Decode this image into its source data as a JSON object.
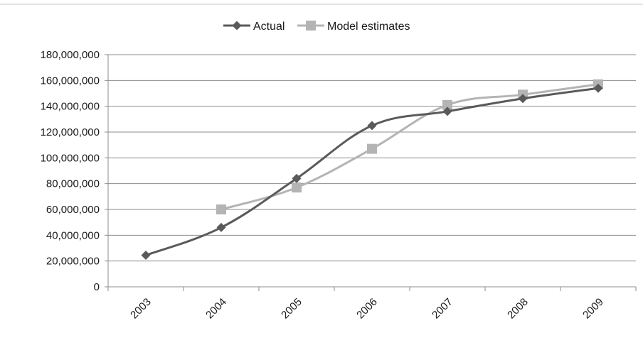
{
  "chart_data": {
    "type": "line",
    "title": "",
    "xlabel": "",
    "ylabel": "",
    "categories": [
      "2003",
      "2004",
      "2005",
      "2006",
      "2007",
      "2008",
      "2009"
    ],
    "ylim": [
      0,
      180000000
    ],
    "yticks": [
      0,
      20000000,
      40000000,
      60000000,
      80000000,
      100000000,
      120000000,
      140000000,
      160000000,
      180000000
    ],
    "ytick_labels": [
      "0",
      "20,000,000",
      "40,000,000",
      "60,000,000",
      "80,000,000",
      "100,000,000",
      "120,000,000",
      "140,000,000",
      "160,000,000",
      "180,000,000"
    ],
    "grid": true,
    "legend": "top-center",
    "series": [
      {
        "name": "Actual",
        "marker": "diamond",
        "color": "#5a5a5a",
        "values": [
          24500000,
          46000000,
          84000000,
          125000000,
          136000000,
          146000000,
          154000000
        ]
      },
      {
        "name": "Model estimates",
        "marker": "square",
        "color": "#b4b4b4",
        "values": [
          null,
          60000000,
          77000000,
          107000000,
          141000000,
          149000000,
          157000000
        ]
      }
    ]
  }
}
